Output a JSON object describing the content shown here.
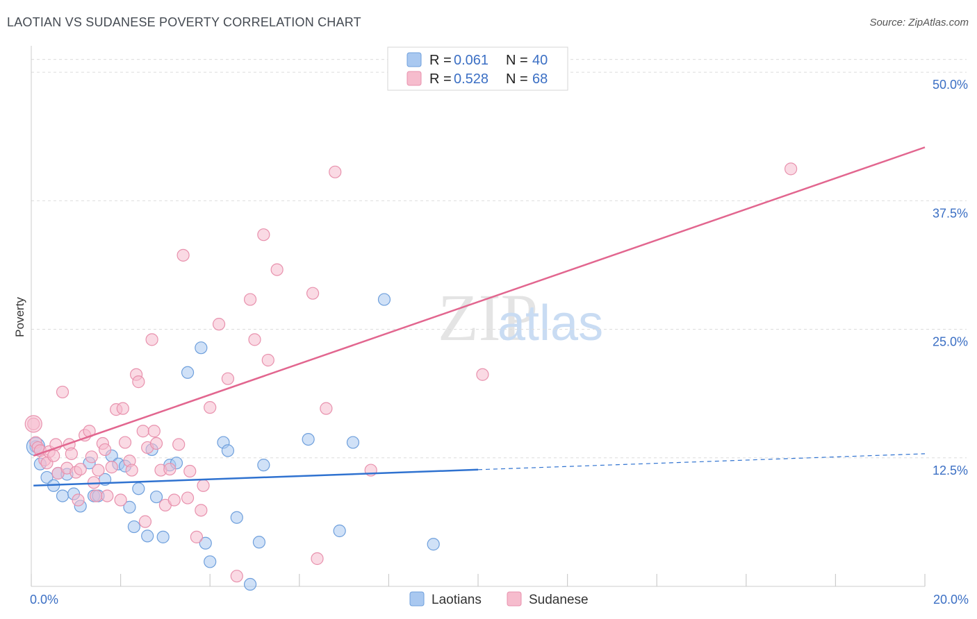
{
  "header": {
    "title": "LAOTIAN VS SUDANESE POVERTY CORRELATION CHART",
    "source": "Source: ZipAtlas.com"
  },
  "watermark": {
    "zip": "ZIP",
    "atlas": "atlas"
  },
  "colors": {
    "blue_fill": "#a9c8f0",
    "blue_stroke": "#6e9fdc",
    "blue_line": "#2f72d0",
    "pink_fill": "#f6bccd",
    "pink_stroke": "#e891ad",
    "pink_line": "#e2668f",
    "tick_label": "#3b6fc4",
    "grid": "#dcdcdc"
  },
  "legend": {
    "rows": [
      {
        "r_label": "R =",
        "r_value": "0.061",
        "n_label": "N =",
        "n_value": "40"
      },
      {
        "r_label": "R =",
        "r_value": "0.528",
        "n_label": "N =",
        "n_value": "68"
      }
    ]
  },
  "chart_data": {
    "type": "scatter",
    "ylabel": "Poverty",
    "xlim": [
      0,
      20
    ],
    "ylim": [
      0,
      50
    ],
    "y_ticks": [
      {
        "value": 12.5,
        "label": "12.5%"
      },
      {
        "value": 25.0,
        "label": "25.0%"
      },
      {
        "value": 37.5,
        "label": "37.5%"
      },
      {
        "value": 50.0,
        "label": "50.0%"
      }
    ],
    "x_tick_labels": [
      {
        "value": 0,
        "label": "0.0%"
      },
      {
        "value": 20,
        "label": "20.0%"
      }
    ],
    "grid": "horizontal dashed",
    "legend_placement": "top-center",
    "series": [
      {
        "name": "Laotians",
        "trend": {
          "x_start": 0.05,
          "y_start": 9.8,
          "x_solid_end": 10.0,
          "y_solid_end": 11.35,
          "x_end": 20.0,
          "y_end": 12.9
        },
        "points": [
          [
            0.1,
            13.6
          ],
          [
            0.2,
            11.9
          ],
          [
            0.35,
            10.6
          ],
          [
            0.5,
            9.8
          ],
          [
            0.6,
            11.0
          ],
          [
            0.7,
            8.8
          ],
          [
            0.8,
            10.9
          ],
          [
            0.95,
            9.0
          ],
          [
            1.1,
            7.8
          ],
          [
            1.3,
            12.0
          ],
          [
            1.4,
            8.8
          ],
          [
            1.5,
            8.8
          ],
          [
            1.65,
            10.4
          ],
          [
            1.8,
            12.7
          ],
          [
            1.95,
            11.9
          ],
          [
            2.1,
            11.7
          ],
          [
            2.2,
            7.7
          ],
          [
            2.3,
            5.8
          ],
          [
            2.4,
            9.5
          ],
          [
            2.6,
            4.9
          ],
          [
            2.7,
            13.3
          ],
          [
            2.8,
            8.7
          ],
          [
            2.95,
            4.8
          ],
          [
            3.1,
            11.8
          ],
          [
            3.25,
            12.0
          ],
          [
            3.5,
            20.8
          ],
          [
            3.8,
            23.2
          ],
          [
            3.9,
            4.2
          ],
          [
            4.0,
            2.4
          ],
          [
            4.3,
            14.0
          ],
          [
            4.4,
            13.2
          ],
          [
            4.6,
            6.7
          ],
          [
            4.9,
            0.2
          ],
          [
            5.1,
            4.3
          ],
          [
            5.2,
            11.8
          ],
          [
            6.2,
            14.3
          ],
          [
            6.9,
            5.4
          ],
          [
            7.2,
            14.0
          ],
          [
            7.9,
            27.9
          ],
          [
            9.0,
            4.1
          ]
        ]
      },
      {
        "name": "Sudanese",
        "trend": {
          "x_start": 0.05,
          "y_start": 12.7,
          "x_end": 20.0,
          "y_end": 42.7
        },
        "points": [
          [
            0.05,
            15.8
          ],
          [
            0.1,
            14.0
          ],
          [
            0.15,
            13.5
          ],
          [
            0.2,
            13.2
          ],
          [
            0.3,
            12.3
          ],
          [
            0.35,
            12.0
          ],
          [
            0.4,
            13.1
          ],
          [
            0.5,
            12.7
          ],
          [
            0.55,
            13.8
          ],
          [
            0.6,
            11.0
          ],
          [
            0.7,
            18.9
          ],
          [
            0.8,
            11.5
          ],
          [
            0.85,
            13.8
          ],
          [
            0.9,
            12.9
          ],
          [
            1.0,
            11.1
          ],
          [
            1.05,
            8.4
          ],
          [
            1.1,
            11.4
          ],
          [
            1.2,
            14.7
          ],
          [
            1.3,
            15.1
          ],
          [
            1.35,
            12.6
          ],
          [
            1.4,
            10.1
          ],
          [
            1.45,
            8.8
          ],
          [
            1.5,
            11.3
          ],
          [
            1.6,
            13.9
          ],
          [
            1.65,
            13.3
          ],
          [
            1.7,
            8.8
          ],
          [
            1.8,
            11.6
          ],
          [
            1.9,
            17.2
          ],
          [
            2.0,
            8.4
          ],
          [
            2.05,
            17.3
          ],
          [
            2.1,
            14.0
          ],
          [
            2.2,
            12.2
          ],
          [
            2.25,
            11.3
          ],
          [
            2.35,
            20.6
          ],
          [
            2.4,
            19.9
          ],
          [
            2.5,
            15.1
          ],
          [
            2.55,
            6.3
          ],
          [
            2.6,
            13.5
          ],
          [
            2.7,
            24.0
          ],
          [
            2.75,
            15.1
          ],
          [
            2.8,
            13.9
          ],
          [
            2.9,
            11.3
          ],
          [
            3.0,
            7.9
          ],
          [
            3.1,
            11.4
          ],
          [
            3.2,
            8.4
          ],
          [
            3.3,
            13.8
          ],
          [
            3.4,
            32.2
          ],
          [
            3.5,
            8.6
          ],
          [
            3.55,
            11.2
          ],
          [
            3.7,
            4.8
          ],
          [
            3.8,
            7.4
          ],
          [
            3.85,
            9.8
          ],
          [
            4.0,
            17.4
          ],
          [
            4.2,
            25.5
          ],
          [
            4.4,
            20.2
          ],
          [
            4.6,
            1.0
          ],
          [
            4.9,
            27.9
          ],
          [
            5.0,
            24.0
          ],
          [
            5.2,
            34.2
          ],
          [
            5.3,
            22.0
          ],
          [
            5.5,
            30.8
          ],
          [
            6.3,
            28.5
          ],
          [
            6.4,
            2.7
          ],
          [
            6.8,
            40.3
          ],
          [
            7.6,
            11.3
          ],
          [
            10.1,
            20.6
          ],
          [
            17.0,
            40.6
          ],
          [
            6.6,
            17.3
          ]
        ]
      }
    ]
  }
}
